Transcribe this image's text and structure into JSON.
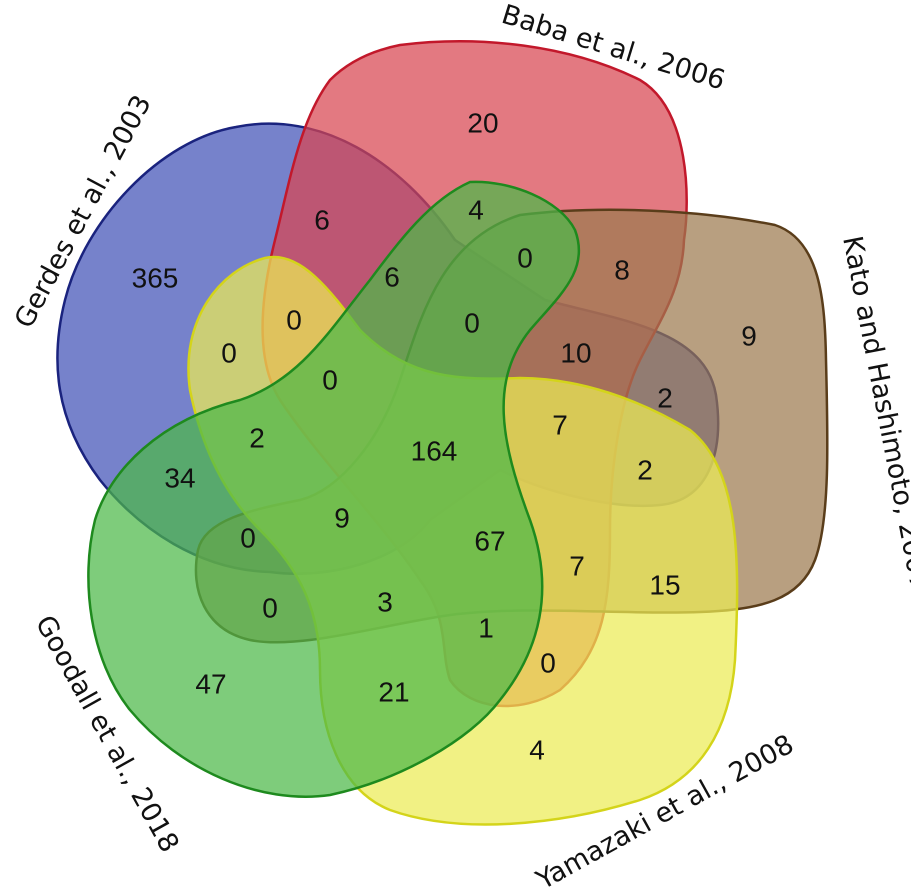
{
  "sets": [
    {
      "id": "gerdes",
      "label": "Gerdes et al., 2003",
      "fill": "#4f5fbd",
      "stroke": "#1a237e"
    },
    {
      "id": "baba",
      "label": "Baba et al., 2006",
      "fill": "#d84550",
      "stroke": "#c2182b"
    },
    {
      "id": "kato",
      "label": "Kato and Hashimoto, 2007",
      "fill": "#9c7a4f",
      "stroke": "#5a3d1a"
    },
    {
      "id": "yamazaki",
      "label": "Yamazaki et al., 2008",
      "fill": "#ecec55",
      "stroke": "#d4d41a"
    },
    {
      "id": "goodall",
      "label": "Goodall et al., 2018",
      "fill": "#4cb848",
      "stroke": "#1e8a1e"
    }
  ],
  "regions": [
    {
      "id": "r-gerdes-only",
      "value": "365"
    },
    {
      "id": "r-baba-only",
      "value": "20"
    },
    {
      "id": "r-kato-only",
      "value": "9"
    },
    {
      "id": "r-yamazaki-only",
      "value": "4"
    },
    {
      "id": "r-goodall-only",
      "value": "47"
    },
    {
      "id": "r-gerdes-baba",
      "value": "6"
    },
    {
      "id": "r-baba-goodall",
      "value": "4"
    },
    {
      "id": "r-baba-goodall-kato",
      "value": "0"
    },
    {
      "id": "r-baba-kato",
      "value": "8"
    },
    {
      "id": "r-gerdes-baba-goodall",
      "value": "6"
    },
    {
      "id": "r-gerdes-baba-yamazaki",
      "value": "0"
    },
    {
      "id": "r-gerdes-baba-goodall-kato",
      "value": "0"
    },
    {
      "id": "r-gerdes-baba-kato",
      "value": "10"
    },
    {
      "id": "r-gerdes-yamazaki",
      "value": "0"
    },
    {
      "id": "r-gerdes-baba-yamazaki-goodall",
      "value": "0"
    },
    {
      "id": "r-gerdes-kato",
      "value": "2"
    },
    {
      "id": "r-gerdes-yamazaki-goodall",
      "value": "2"
    },
    {
      "id": "r-all",
      "value": "164"
    },
    {
      "id": "r-gerdes-baba-kato-yamazaki",
      "value": "7"
    },
    {
      "id": "r-gerdes-kato-yamazaki",
      "value": "2"
    },
    {
      "id": "r-gerdes-goodall",
      "value": "34"
    },
    {
      "id": "r-gerdes-goodall-kato",
      "value": "0"
    },
    {
      "id": "r-gerdes-yamazaki-goodall-kato",
      "value": "9"
    },
    {
      "id": "r-baba-yamazaki-goodall-kato",
      "value": "67"
    },
    {
      "id": "r-baba-kato-yamazaki",
      "value": "7"
    },
    {
      "id": "r-kato-yamazaki",
      "value": "15"
    },
    {
      "id": "r-goodall-kato",
      "value": "0"
    },
    {
      "id": "r-yamazaki-goodall-kato",
      "value": "3"
    },
    {
      "id": "r-baba-yamazaki-goodall",
      "value": "1"
    },
    {
      "id": "r-baba-yamazaki",
      "value": "0"
    },
    {
      "id": "r-yamazaki-goodall",
      "value": "21"
    }
  ]
}
